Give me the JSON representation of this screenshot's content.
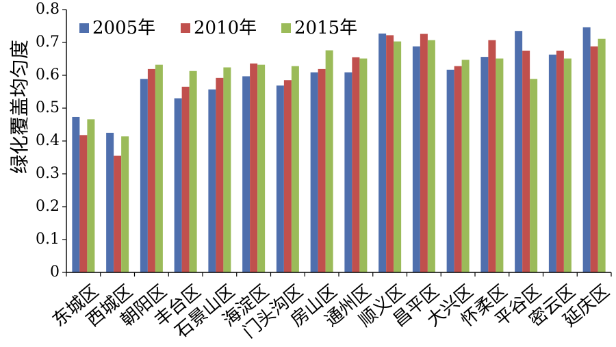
{
  "chart_data": {
    "type": "bar",
    "ylabel": "绿化覆盖均匀度",
    "ylim": [
      0,
      0.8
    ],
    "yticks": [
      "0",
      "0.1",
      "0.2",
      "0.3",
      "0.4",
      "0.5",
      "0.6",
      "0.7",
      "0.8"
    ],
    "legend_position": "top-left",
    "categories": [
      "东城区",
      "西城区",
      "朝阳区",
      "丰台区",
      "石景山区",
      "海淀区",
      "门头沟区",
      "房山区",
      "通州区",
      "顺义区",
      "昌平区",
      "大兴区",
      "怀柔区",
      "平谷区",
      "密云区",
      "延庆区"
    ],
    "series": [
      {
        "name": "2005年",
        "color": "#4f6fad",
        "values": [
          0.473,
          0.425,
          0.589,
          0.53,
          0.557,
          0.597,
          0.569,
          0.609,
          0.609,
          0.727,
          0.688,
          0.617,
          0.656,
          0.735,
          0.663,
          0.746
        ]
      },
      {
        "name": "2010年",
        "color": "#c0504d",
        "values": [
          0.418,
          0.355,
          0.619,
          0.565,
          0.592,
          0.636,
          0.585,
          0.619,
          0.655,
          0.722,
          0.726,
          0.628,
          0.707,
          0.675,
          0.675,
          0.688
        ]
      },
      {
        "name": "2015年",
        "color": "#9bbb59",
        "values": [
          0.466,
          0.414,
          0.632,
          0.613,
          0.624,
          0.632,
          0.628,
          0.676,
          0.651,
          0.703,
          0.707,
          0.647,
          0.651,
          0.589,
          0.651,
          0.711
        ]
      }
    ]
  }
}
